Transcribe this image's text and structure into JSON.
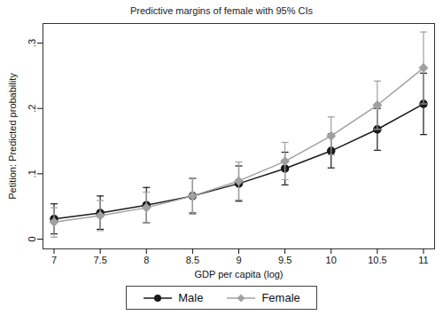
{
  "chart_data": {
    "type": "line",
    "title": "Predictive margins of female with 95% CIs",
    "x_label": "GDP per capita (log)",
    "y_label": "Petition: Predicted probability",
    "x": [
      7,
      7.5,
      8,
      8.5,
      9,
      9.5,
      10,
      10.5,
      11
    ],
    "xlim": [
      6.88,
      11.12
    ],
    "xticks": [
      7,
      7.5,
      8,
      8.5,
      9,
      9.5,
      10,
      10.5,
      11
    ],
    "ylim": [
      -0.015,
      0.33
    ],
    "yticks": [
      0,
      {
        "value": 0.1,
        "label": ".1"
      },
      {
        "value": 0.2,
        "label": ".2"
      },
      {
        "value": 0.3,
        "label": ".3"
      }
    ],
    "grid": false,
    "legend": "bottom",
    "series": [
      {
        "name": "Male",
        "color": "#1a1a1a",
        "marker": "circle",
        "values": [
          0.031,
          0.04,
          0.052,
          0.066,
          0.085,
          0.108,
          0.135,
          0.168,
          0.207
        ],
        "lower": [
          0.008,
          0.015,
          0.025,
          0.04,
          0.058,
          0.083,
          0.109,
          0.136,
          0.16
        ],
        "upper": [
          0.054,
          0.066,
          0.079,
          0.093,
          0.112,
          0.133,
          0.161,
          0.2,
          0.254
        ]
      },
      {
        "name": "Female",
        "color": "#a0a0a0",
        "marker": "diamond",
        "values": [
          0.026,
          0.036,
          0.048,
          0.066,
          0.089,
          0.119,
          0.158,
          0.205,
          0.262
        ],
        "lower": [
          0.003,
          0.013,
          0.025,
          0.038,
          0.06,
          0.091,
          0.129,
          0.168,
          0.207
        ],
        "upper": [
          0.048,
          0.059,
          0.072,
          0.093,
          0.118,
          0.148,
          0.187,
          0.242,
          0.317
        ]
      }
    ]
  }
}
